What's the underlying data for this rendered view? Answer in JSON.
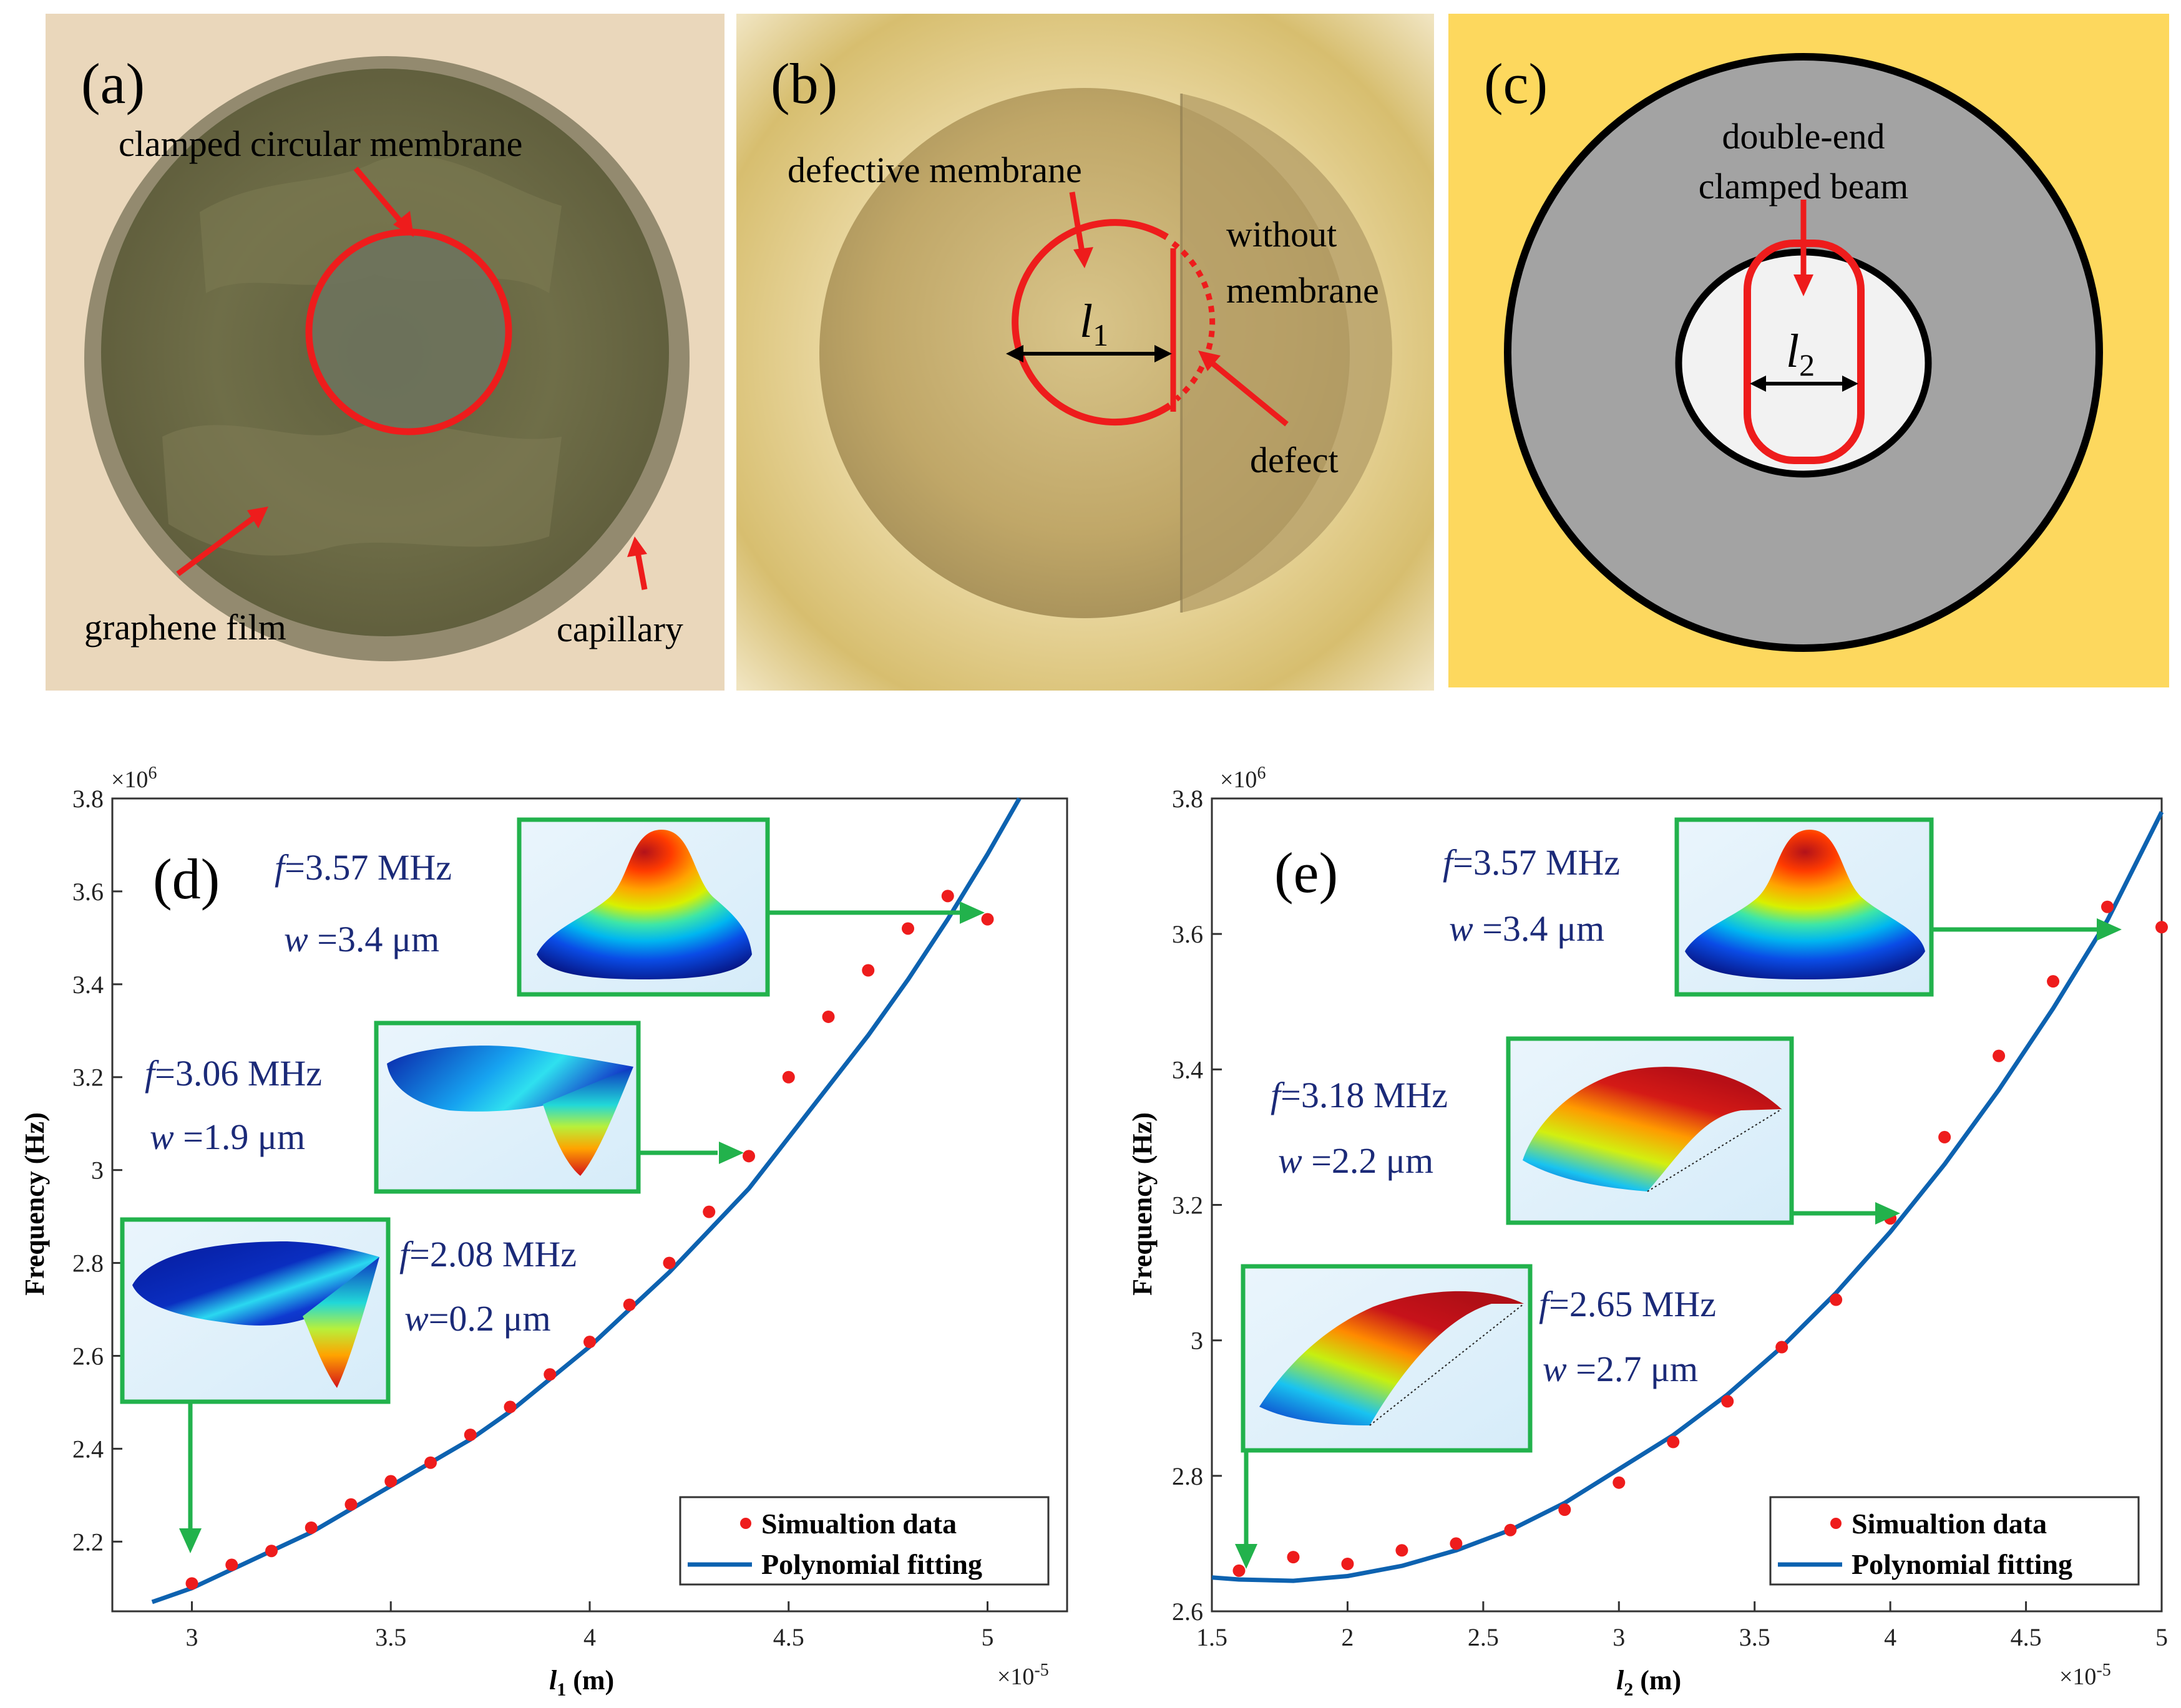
{
  "panels": {
    "a": {
      "label": "(a)",
      "clamped_label": "clamped circular membrane",
      "graphene_label": "graphene film",
      "capillary_label": "capillary"
    },
    "b": {
      "label": "(b)",
      "defective_label": "defective membrane",
      "without_label_1": "without",
      "without_label_2": "membrane",
      "defect_label": "defect",
      "length_symbol": "l",
      "length_sub": "1"
    },
    "c": {
      "label": "(c)",
      "beam_label_1": "double-end",
      "beam_label_2": "clamped beam",
      "length_symbol": "l",
      "length_sub": "2"
    }
  },
  "colors": {
    "accent_red": "#ee1c1c",
    "fit_blue": "#0d62b0",
    "inset_green": "#22b24c",
    "panel_c_background": "#fdd85e",
    "panel_c_gray": "#a3a3a3",
    "inset_text": "#1b2a78"
  },
  "legend": {
    "scatter_label": "Simualtion data",
    "line_label": "Polynomial fitting"
  },
  "chart_data": [
    {
      "type": "scatter",
      "panel_label": "(d)",
      "xlabel_symbol": "l",
      "xlabel_sub": "1",
      "xlabel_unit": " (m)",
      "ylabel": "Frequency (Hz)",
      "x_multiplier": "×10",
      "x_multiplier_exp": "-5",
      "y_multiplier": "×10",
      "y_multiplier_exp": "6",
      "xlim": [
        2.8,
        5.2
      ],
      "ylim": [
        2.05,
        3.8
      ],
      "xticks": [
        3,
        3.5,
        4,
        4.5,
        5
      ],
      "xtick_labels": [
        "3",
        "3.5",
        "4",
        "4.5",
        "5"
      ],
      "yticks": [
        2.2,
        2.4,
        2.6,
        2.8,
        3.0,
        3.2,
        3.4,
        3.6,
        3.8
      ],
      "ytick_labels": [
        "2.2",
        "2.4",
        "2.6",
        "2.8",
        "3",
        "3.2",
        "3.4",
        "3.6",
        "3.8"
      ],
      "series": [
        {
          "name": "Simualtion data",
          "kind": "scatter",
          "x": [
            3.0,
            3.1,
            3.2,
            3.3,
            3.4,
            3.5,
            3.6,
            3.7,
            3.8,
            3.9,
            4.0,
            4.1,
            4.2,
            4.3,
            4.4,
            4.5,
            4.6,
            4.7,
            4.8,
            4.9,
            5.0
          ],
          "y": [
            2.11,
            2.15,
            2.18,
            2.23,
            2.28,
            2.33,
            2.37,
            2.43,
            2.49,
            2.56,
            2.63,
            2.71,
            2.8,
            2.91,
            3.03,
            3.2,
            3.33,
            3.43,
            3.52,
            3.59,
            3.54
          ]
        },
        {
          "name": "Polynomial fitting",
          "kind": "line",
          "x": [
            2.9,
            3.0,
            3.1,
            3.2,
            3.3,
            3.4,
            3.5,
            3.6,
            3.7,
            3.8,
            3.9,
            4.0,
            4.1,
            4.2,
            4.3,
            4.4,
            4.5,
            4.6,
            4.7,
            4.8,
            4.9,
            5.0,
            5.08
          ],
          "y": [
            2.07,
            2.1,
            2.14,
            2.18,
            2.22,
            2.27,
            2.32,
            2.37,
            2.42,
            2.48,
            2.55,
            2.62,
            2.7,
            2.78,
            2.87,
            2.96,
            3.07,
            3.18,
            3.29,
            3.41,
            3.54,
            3.68,
            3.8
          ]
        }
      ],
      "insets": [
        {
          "f_sym": "f",
          "f_text": "=3.57 MHz",
          "w_sym": "w",
          "w_text": " =3.4 μm",
          "mode": "dome"
        },
        {
          "f_sym": "f",
          "f_text": "=3.06 MHz",
          "w_sym": "w",
          "w_text": " =1.9 μm",
          "mode": "tilted"
        },
        {
          "f_sym": "f",
          "f_text": "=2.08 MHz",
          "w_sym": "w",
          "w_text": "=0.2 μm",
          "mode": "tilted-flat"
        }
      ]
    },
    {
      "type": "scatter",
      "panel_label": "(e)",
      "xlabel_symbol": "l",
      "xlabel_sub": "2",
      "xlabel_unit": " (m)",
      "ylabel": "Frequency (Hz)",
      "x_multiplier": "×10",
      "x_multiplier_exp": "-5",
      "y_multiplier": "×10",
      "y_multiplier_exp": "6",
      "xlim": [
        1.5,
        5.0
      ],
      "ylim": [
        2.6,
        3.8
      ],
      "xticks": [
        1.5,
        2,
        2.5,
        3,
        3.5,
        4,
        4.5,
        5
      ],
      "xtick_labels": [
        "1.5",
        "2",
        "2.5",
        "3",
        "3.5",
        "4",
        "4.5",
        "5"
      ],
      "yticks": [
        2.6,
        2.8,
        3.0,
        3.2,
        3.4,
        3.6,
        3.8
      ],
      "ytick_labels": [
        "2.6",
        "2.8",
        "3",
        "3.2",
        "3.4",
        "3.6",
        "3.8"
      ],
      "series": [
        {
          "name": "Simualtion data",
          "kind": "scatter",
          "x": [
            1.6,
            1.8,
            2.0,
            2.2,
            2.4,
            2.6,
            2.8,
            3.0,
            3.2,
            3.4,
            3.6,
            3.8,
            4.0,
            4.2,
            4.4,
            4.6,
            4.8,
            5.0
          ],
          "y": [
            2.66,
            2.68,
            2.67,
            2.69,
            2.7,
            2.72,
            2.75,
            2.79,
            2.85,
            2.91,
            2.99,
            3.06,
            3.18,
            3.3,
            3.42,
            3.53,
            3.64,
            3.61
          ]
        },
        {
          "name": "Polynomial fitting",
          "kind": "line",
          "x": [
            1.5,
            1.6,
            1.8,
            2.0,
            2.2,
            2.4,
            2.6,
            2.8,
            3.0,
            3.2,
            3.4,
            3.6,
            3.8,
            4.0,
            4.2,
            4.4,
            4.6,
            4.8,
            5.0
          ],
          "y": [
            2.65,
            2.647,
            2.645,
            2.652,
            2.667,
            2.69,
            2.72,
            2.76,
            2.81,
            2.86,
            2.92,
            2.99,
            3.07,
            3.16,
            3.26,
            3.37,
            3.49,
            3.62,
            3.78
          ]
        }
      ],
      "insets": [
        {
          "f_sym": "f",
          "f_text": "=3.57 MHz",
          "w_sym": "w",
          "w_text": " =3.4 μm",
          "mode": "dome"
        },
        {
          "f_sym": "f",
          "f_text": "=3.18 MHz",
          "w_sym": "w",
          "w_text": " =2.2 μm",
          "mode": "beam"
        },
        {
          "f_sym": "f",
          "f_text": "=2.65 MHz",
          "w_sym": "w",
          "w_text": " =2.7 μm",
          "mode": "beam-tilted"
        }
      ]
    }
  ]
}
